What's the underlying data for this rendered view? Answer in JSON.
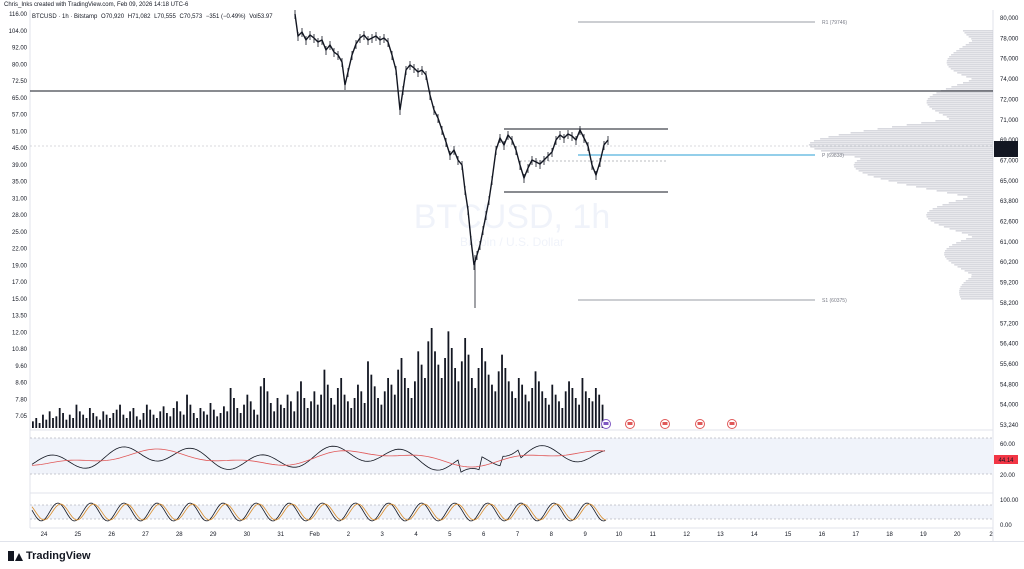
{
  "caption": "Chris_Inks created with TradingView.com, Feb 09, 2026 14:18 UTC-6",
  "symbol": {
    "pair": "BTCUSD · 1h · Bitstamp",
    "open": "O70,920",
    "high": "H71,082",
    "low": "L70,555",
    "close": "C70,573",
    "change": "−351 (−0.49%)",
    "vol": "Vol53.97"
  },
  "watermark": {
    "line1": "BTCUSD, 1h",
    "line2": "Bitcoin / U.S. Dollar"
  },
  "brand": "TradingView",
  "colors": {
    "price_line": "#131722",
    "pivot": "#2a9fd6",
    "ma": "#e05858",
    "stoch_k": "#d98c2a",
    "current_label": "#131722",
    "rsi_label": "#f23645"
  },
  "chart_data": {
    "type": "line",
    "price_axis": [
      "80,000",
      "78,000",
      "76,000",
      "74,000",
      "72,000",
      "71,000",
      "69,000",
      "67,000",
      "65,000",
      "63,800",
      "62,600",
      "61,000",
      "60,200",
      "59,200",
      "58,200",
      "57,200",
      "56,400",
      "55,600",
      "54,800",
      "54,000",
      "53,240"
    ],
    "left_axis": [
      "116.00",
      "104.00",
      "92.00",
      "80.00",
      "72.50",
      "65.00",
      "57.00",
      "51.00",
      "45.00",
      "39.00",
      "35.00",
      "31.00",
      "28.00",
      "25.00",
      "22.00",
      "19.00",
      "17.00",
      "15.00",
      "13.50",
      "12.00",
      "10.80",
      "9.60",
      "8.60",
      "7.80",
      "7.05"
    ],
    "x_axis": [
      "24",
      "25",
      "26",
      "27",
      "28",
      "29",
      "30",
      "31",
      "Feb",
      "2",
      "3",
      "4",
      "5",
      "6",
      "7",
      "8",
      "9",
      "10",
      "11",
      "12",
      "13",
      "14",
      "15",
      "16",
      "17",
      "18",
      "19",
      "20",
      "2"
    ],
    "current_price": "70,573",
    "current_sub": "41:09",
    "levels": [
      {
        "label": "R1 (79746)",
        "value": 79746
      },
      {
        "label": "P (69838)",
        "value": 69838
      },
      {
        "label": "S1 (60375)",
        "value": 60375
      }
    ],
    "price_path": [
      [
        295,
        14
      ],
      [
        298,
        36
      ],
      [
        302,
        32
      ],
      [
        306,
        40
      ],
      [
        310,
        35
      ],
      [
        314,
        38
      ],
      [
        318,
        42
      ],
      [
        322,
        40
      ],
      [
        326,
        50
      ],
      [
        330,
        45
      ],
      [
        334,
        52
      ],
      [
        338,
        55
      ],
      [
        342,
        62
      ],
      [
        345,
        85
      ],
      [
        348,
        72
      ],
      [
        352,
        55
      ],
      [
        356,
        44
      ],
      [
        360,
        38
      ],
      [
        364,
        35
      ],
      [
        368,
        40
      ],
      [
        372,
        38
      ],
      [
        376,
        36
      ],
      [
        380,
        40
      ],
      [
        384,
        38
      ],
      [
        388,
        42
      ],
      [
        392,
        55
      ],
      [
        396,
        70
      ],
      [
        400,
        110
      ],
      [
        403,
        90
      ],
      [
        406,
        70
      ],
      [
        410,
        65
      ],
      [
        414,
        68
      ],
      [
        418,
        72
      ],
      [
        422,
        70
      ],
      [
        426,
        75
      ],
      [
        430,
        95
      ],
      [
        434,
        110
      ],
      [
        438,
        118
      ],
      [
        442,
        130
      ],
      [
        446,
        142
      ],
      [
        450,
        155
      ],
      [
        454,
        150
      ],
      [
        458,
        160
      ],
      [
        462,
        165
      ],
      [
        465,
        190
      ],
      [
        468,
        210
      ],
      [
        471,
        240
      ],
      [
        474,
        265
      ],
      [
        477,
        255
      ],
      [
        480,
        245
      ],
      [
        483,
        230
      ],
      [
        486,
        215
      ],
      [
        489,
        200
      ],
      [
        492,
        180
      ],
      [
        496,
        150
      ],
      [
        500,
        138
      ],
      [
        504,
        145
      ],
      [
        508,
        135
      ],
      [
        512,
        140
      ],
      [
        516,
        150
      ],
      [
        520,
        165
      ],
      [
        524,
        178
      ],
      [
        528,
        168
      ],
      [
        532,
        160
      ],
      [
        536,
        162
      ],
      [
        540,
        164
      ],
      [
        544,
        160
      ],
      [
        548,
        156
      ],
      [
        552,
        152
      ],
      [
        556,
        140
      ],
      [
        560,
        135
      ],
      [
        564,
        138
      ],
      [
        568,
        134
      ],
      [
        572,
        136
      ],
      [
        576,
        140
      ],
      [
        580,
        130
      ],
      [
        584,
        138
      ],
      [
        588,
        146
      ],
      [
        592,
        165
      ],
      [
        596,
        175
      ],
      [
        600,
        162
      ],
      [
        604,
        145
      ],
      [
        608,
        140
      ]
    ],
    "volume_bars": [
      4,
      6,
      3,
      8,
      5,
      10,
      6,
      7,
      12,
      9,
      5,
      8,
      6,
      14,
      10,
      8,
      6,
      12,
      9,
      7,
      5,
      10,
      8,
      6,
      9,
      11,
      14,
      8,
      6,
      10,
      12,
      7,
      5,
      9,
      14,
      11,
      8,
      6,
      10,
      13,
      9,
      7,
      12,
      16,
      10,
      8,
      20,
      14,
      9,
      6,
      12,
      10,
      8,
      15,
      11,
      7,
      9,
      13,
      10,
      24,
      18,
      12,
      9,
      14,
      20,
      16,
      11,
      8,
      25,
      30,
      22,
      15,
      10,
      18,
      14,
      12,
      20,
      16,
      10,
      22,
      28,
      18,
      12,
      16,
      22,
      14,
      20,
      35,
      26,
      18,
      14,
      24,
      30,
      20,
      16,
      12,
      18,
      26,
      22,
      15,
      40,
      32,
      25,
      18,
      14,
      22,
      30,
      26,
      20,
      35,
      42,
      30,
      24,
      18,
      28,
      46,
      38,
      30,
      52,
      60,
      46,
      38,
      30,
      42,
      58,
      48,
      36,
      28,
      40,
      54,
      44,
      30,
      24,
      36,
      48,
      40,
      32,
      26,
      22,
      34,
      44,
      36,
      28,
      22,
      18,
      30,
      26,
      20,
      16,
      24,
      34,
      28,
      22,
      18,
      14,
      26,
      20,
      16,
      12,
      22,
      28,
      24,
      18,
      14,
      30,
      22,
      18,
      16,
      24,
      20,
      14
    ],
    "rsi_ticks": [
      "60.00",
      "20.00"
    ],
    "rsi_value": "44.14",
    "stoch_ticks": [
      "100.00",
      "0.00"
    ]
  }
}
